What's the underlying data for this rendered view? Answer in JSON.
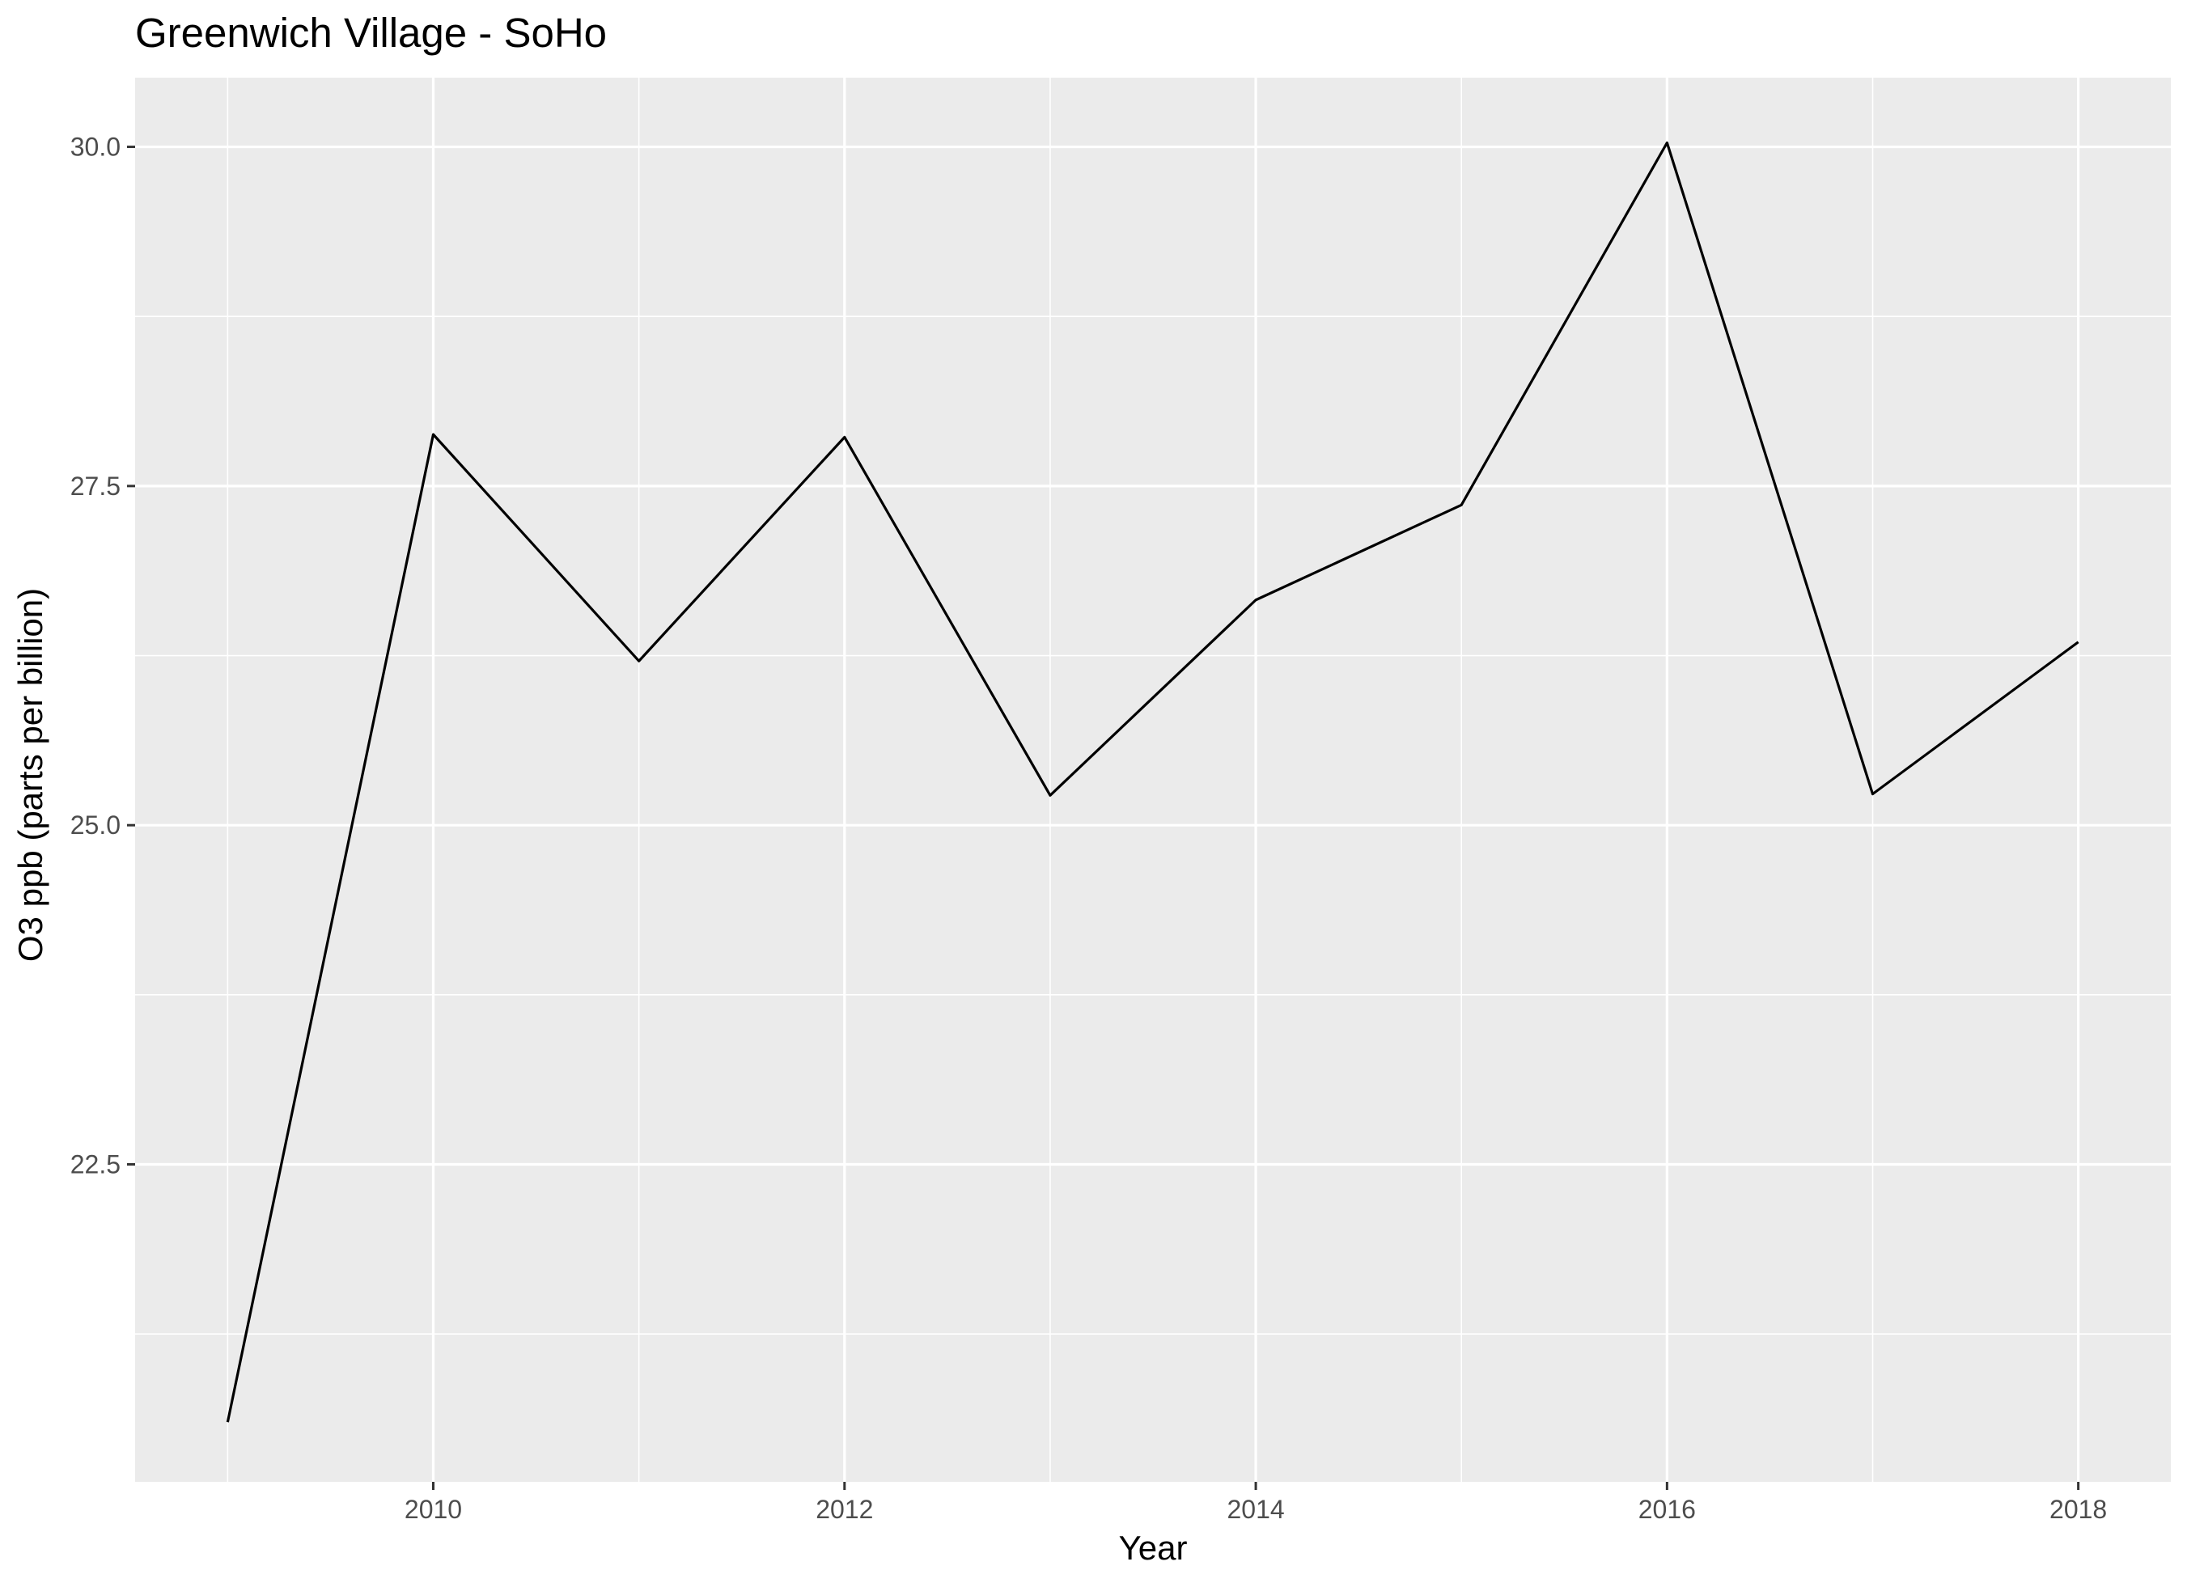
{
  "chart_data": {
    "type": "line",
    "title": "Greenwich Village - SoHo",
    "xlabel": "Year",
    "ylabel": "O3 ppb (parts per billion)",
    "x": [
      2009,
      2010,
      2011,
      2012,
      2013,
      2014,
      2015,
      2016,
      2017,
      2018
    ],
    "series": [
      {
        "values": [
          20.6,
          27.88,
          26.21,
          27.86,
          25.22,
          26.66,
          27.36,
          30.03,
          25.23,
          26.35
        ]
      }
    ],
    "xlim": [
      2008.55,
      2018.45
    ],
    "ylim": [
      20.16,
      30.51
    ],
    "x_ticks": [
      2010,
      2012,
      2014,
      2016,
      2018
    ],
    "x_tick_labels": [
      "2010",
      "2012",
      "2014",
      "2016",
      "2018"
    ],
    "x_minor_ticks": [
      2009,
      2011,
      2013,
      2015,
      2017
    ],
    "y_ticks": [
      22.5,
      25.0,
      27.5,
      30.0
    ],
    "y_tick_labels": [
      "22.5",
      "25.0",
      "27.5",
      "30.0"
    ],
    "y_minor_ticks": [
      21.25,
      23.75,
      26.25,
      28.75
    ],
    "grid": true,
    "legend": "none",
    "colors": {
      "panel_background": "#ebebeb",
      "grid_line": "#ffffff",
      "series_line": "#000000",
      "tick_mark": "#333333",
      "tick_label": "#4d4d4d"
    }
  }
}
